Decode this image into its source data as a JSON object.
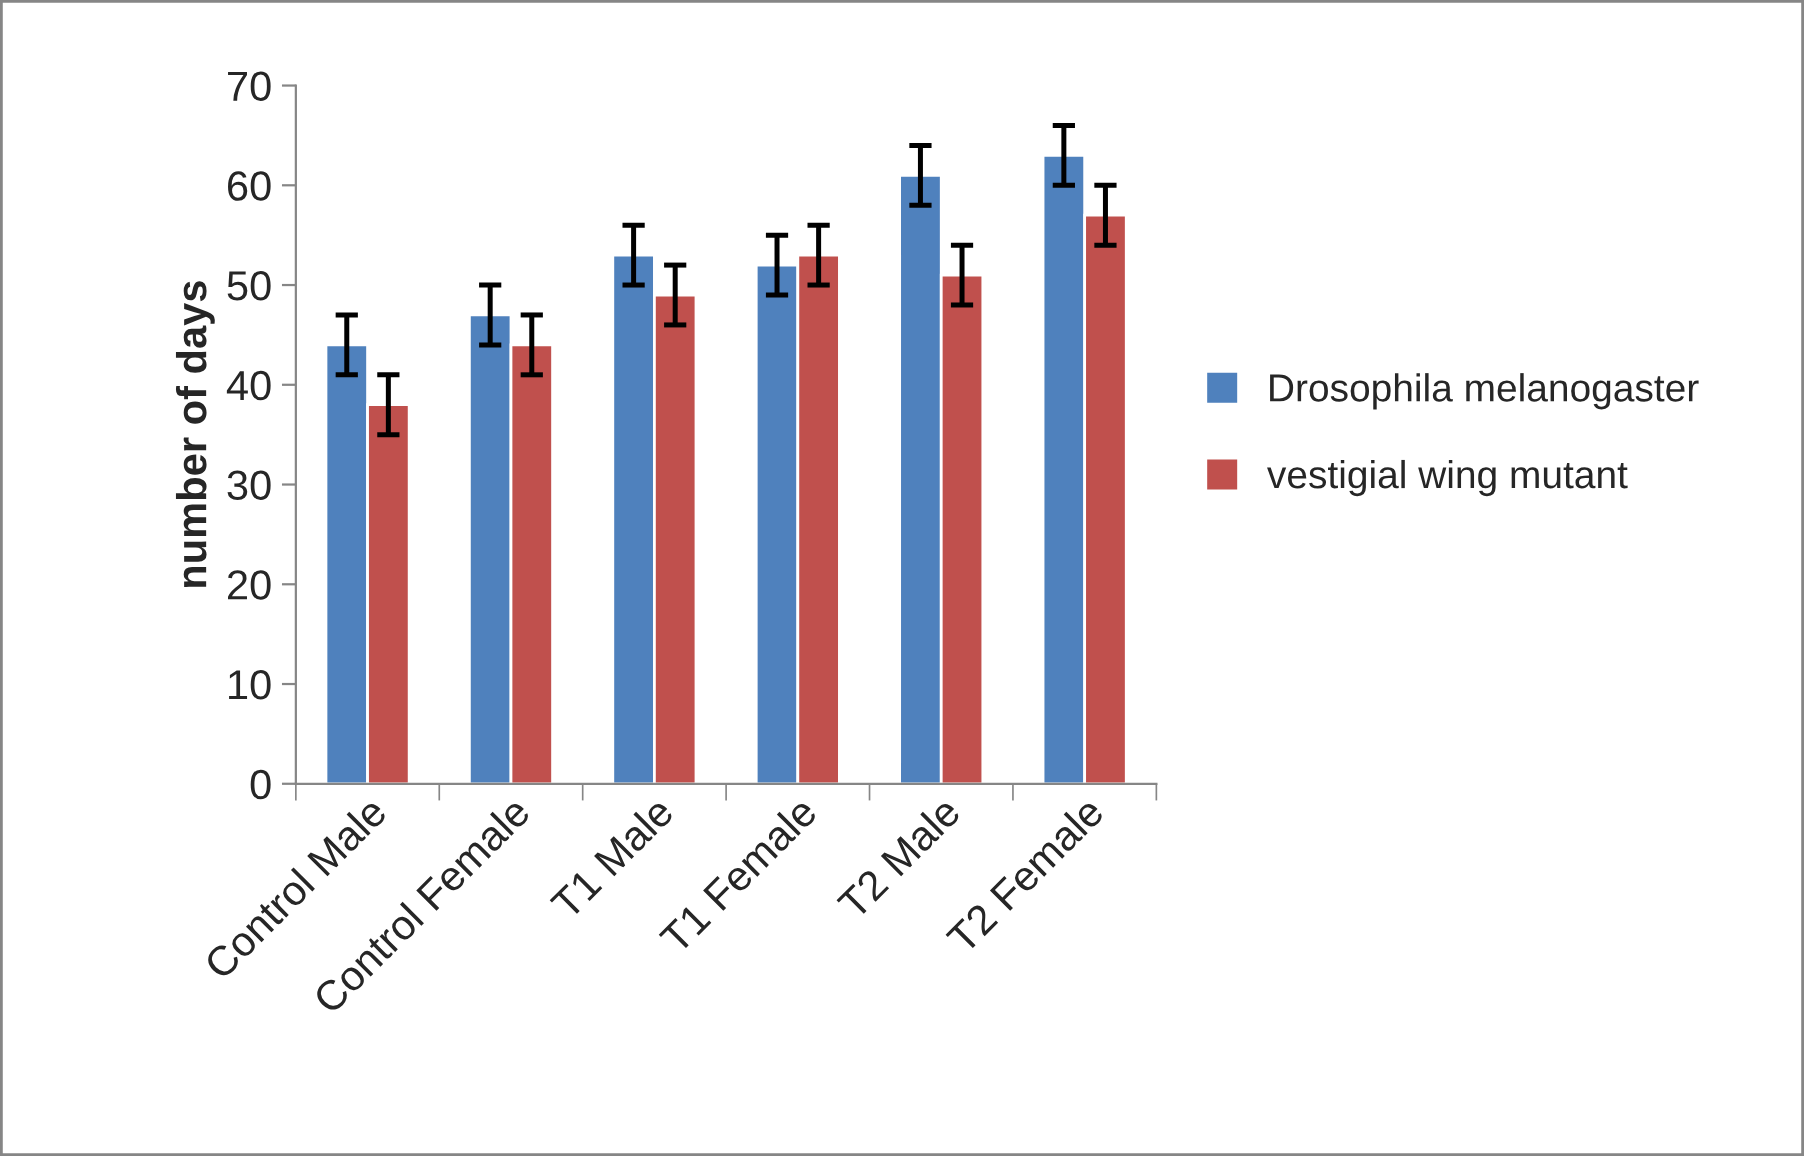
{
  "chart_data": {
    "type": "bar",
    "ylabel": "number of days",
    "categories": [
      "Control Male",
      "Control Female",
      "T1 Male",
      "T1 Female",
      "T2 Male",
      "T2 Female"
    ],
    "series": [
      {
        "name": "Drosophila melanogaster",
        "color": "#4f81bd",
        "values": [
          44,
          47,
          53,
          52,
          61,
          63
        ],
        "errors": [
          3,
          3,
          3,
          3,
          3,
          3
        ]
      },
      {
        "name": "vestigial wing mutant",
        "color": "#c0504d",
        "values": [
          38,
          44,
          49,
          53,
          51,
          57
        ],
        "errors": [
          3,
          3,
          3,
          3,
          3,
          3
        ]
      }
    ],
    "ylim": [
      0,
      70
    ],
    "yticks": [
      0,
      10,
      20,
      30,
      40,
      50,
      60,
      70
    ],
    "grid": false,
    "legend": "right"
  }
}
